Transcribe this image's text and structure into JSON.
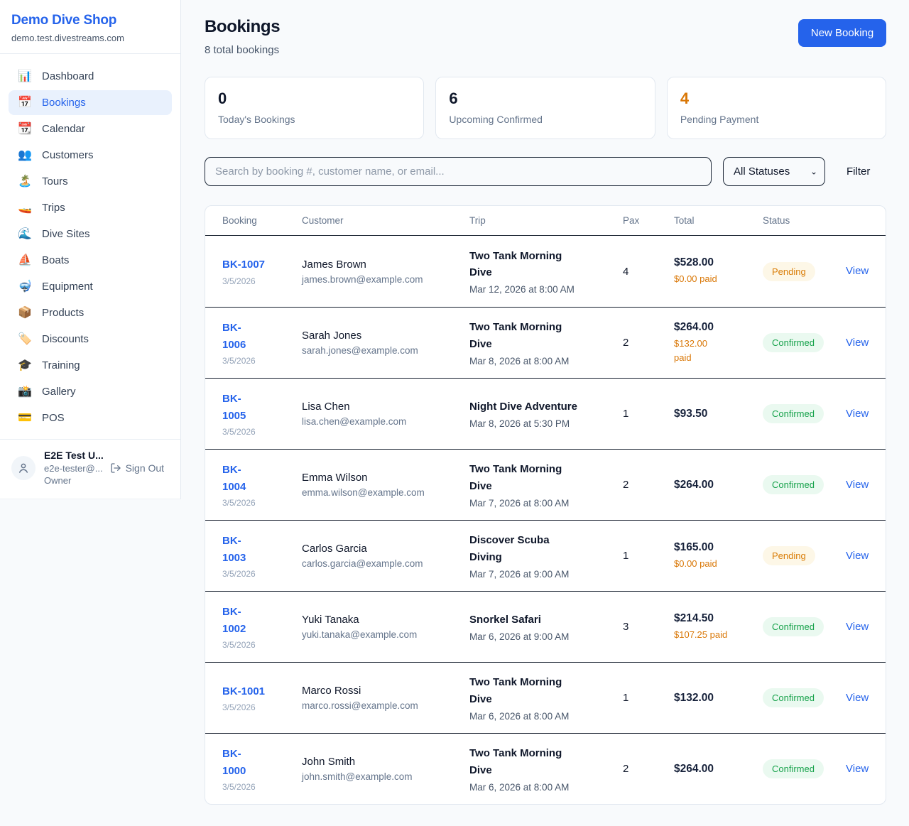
{
  "sidebar": {
    "title": "Demo Dive Shop",
    "subdomain": "demo.test.divestreams.com",
    "items": [
      {
        "name": "dashboard",
        "icon": "📊",
        "label": "Dashboard",
        "active": false
      },
      {
        "name": "bookings",
        "icon": "📅",
        "label": "Bookings",
        "active": true
      },
      {
        "name": "calendar",
        "icon": "📆",
        "label": "Calendar",
        "active": false
      },
      {
        "name": "customers",
        "icon": "👥",
        "label": "Customers",
        "active": false
      },
      {
        "name": "tours",
        "icon": "🏝️",
        "label": "Tours",
        "active": false
      },
      {
        "name": "trips",
        "icon": "🚤",
        "label": "Trips",
        "active": false
      },
      {
        "name": "dive-sites",
        "icon": "🌊",
        "label": "Dive Sites",
        "active": false
      },
      {
        "name": "boats",
        "icon": "⛵",
        "label": "Boats",
        "active": false
      },
      {
        "name": "equipment",
        "icon": "🤿",
        "label": "Equipment",
        "active": false
      },
      {
        "name": "products",
        "icon": "📦",
        "label": "Products",
        "active": false
      },
      {
        "name": "discounts",
        "icon": "🏷️",
        "label": "Discounts",
        "active": false
      },
      {
        "name": "training",
        "icon": "🎓",
        "label": "Training",
        "active": false
      },
      {
        "name": "gallery",
        "icon": "📸",
        "label": "Gallery",
        "active": false
      },
      {
        "name": "pos",
        "icon": "💳",
        "label": "POS",
        "active": false
      }
    ],
    "user": {
      "name": "E2E Test U...",
      "email": "e2e-tester@...",
      "role": "Owner",
      "sign_out_label": "Sign Out"
    }
  },
  "header": {
    "title": "Bookings",
    "subtitle": "8 total bookings",
    "new_booking_label": "New Booking"
  },
  "stats": [
    {
      "value": "0",
      "label": "Today's Bookings",
      "accent": false
    },
    {
      "value": "6",
      "label": "Upcoming Confirmed",
      "accent": false
    },
    {
      "value": "4",
      "label": "Pending Payment",
      "accent": true
    }
  ],
  "filters": {
    "search_placeholder": "Search by booking #, customer name, or email...",
    "status_select_value": "All Statuses",
    "filter_label": "Filter"
  },
  "table": {
    "columns": [
      "Booking",
      "Customer",
      "Trip",
      "Pax",
      "Total",
      "Status"
    ],
    "view_label": "View",
    "rows": [
      {
        "id": "BK-1007",
        "booked_date": "3/5/2026",
        "customer": "James Brown",
        "email": "james.brown@example.com",
        "trip": "Two Tank Morning\nDive",
        "trip_date": "Mar 12, 2026 at 8:00 AM",
        "pax": "4",
        "total": "$528.00",
        "paid": "$0.00 paid",
        "status": "Pending"
      },
      {
        "id": "BK-\n1006",
        "booked_date": "3/5/2026",
        "customer": "Sarah Jones",
        "email": "sarah.jones@example.com",
        "trip": "Two Tank Morning\nDive",
        "trip_date": "Mar 8, 2026 at 8:00 AM",
        "pax": "2",
        "total": "$264.00",
        "paid": "$132.00\npaid",
        "status": "Confirmed"
      },
      {
        "id": "BK-\n1005",
        "booked_date": "3/5/2026",
        "customer": "Lisa Chen",
        "email": "lisa.chen@example.com",
        "trip": "Night Dive Adventure",
        "trip_date": "Mar 8, 2026 at 5:30 PM",
        "pax": "1",
        "total": "$93.50",
        "paid": "",
        "status": "Confirmed"
      },
      {
        "id": "BK-\n1004",
        "booked_date": "3/5/2026",
        "customer": "Emma Wilson",
        "email": "emma.wilson@example.com",
        "trip": "Two Tank Morning\nDive",
        "trip_date": "Mar 7, 2026 at 8:00 AM",
        "pax": "2",
        "total": "$264.00",
        "paid": "",
        "status": "Confirmed"
      },
      {
        "id": "BK-\n1003",
        "booked_date": "3/5/2026",
        "customer": "Carlos Garcia",
        "email": "carlos.garcia@example.com",
        "trip": "Discover Scuba\nDiving",
        "trip_date": "Mar 7, 2026 at 9:00 AM",
        "pax": "1",
        "total": "$165.00",
        "paid": "$0.00 paid",
        "status": "Pending"
      },
      {
        "id": "BK-\n1002",
        "booked_date": "3/5/2026",
        "customer": "Yuki Tanaka",
        "email": "yuki.tanaka@example.com",
        "trip": "Snorkel Safari",
        "trip_date": "Mar 6, 2026 at 9:00 AM",
        "pax": "3",
        "total": "$214.50",
        "paid": "$107.25 paid",
        "status": "Confirmed"
      },
      {
        "id": "BK-1001",
        "booked_date": "3/5/2026",
        "customer": "Marco Rossi",
        "email": "marco.rossi@example.com",
        "trip": "Two Tank Morning\nDive",
        "trip_date": "Mar 6, 2026 at 8:00 AM",
        "pax": "1",
        "total": "$132.00",
        "paid": "",
        "status": "Confirmed"
      },
      {
        "id": "BK-\n1000",
        "booked_date": "3/5/2026",
        "customer": "John Smith",
        "email": "john.smith@example.com",
        "trip": "Two Tank Morning\nDive",
        "trip_date": "Mar 6, 2026 at 8:00 AM",
        "pax": "2",
        "total": "$264.00",
        "paid": "",
        "status": "Confirmed"
      }
    ]
  },
  "colors": {
    "accent_blue": "#2563eb",
    "accent_orange": "#d97706",
    "status_pending_bg": "#fdf7e7",
    "status_pending_text": "#d97c06",
    "status_confirmed_bg": "#eaf9f0",
    "status_confirmed_text": "#17a24b",
    "page_bg": "#f8fafc"
  }
}
